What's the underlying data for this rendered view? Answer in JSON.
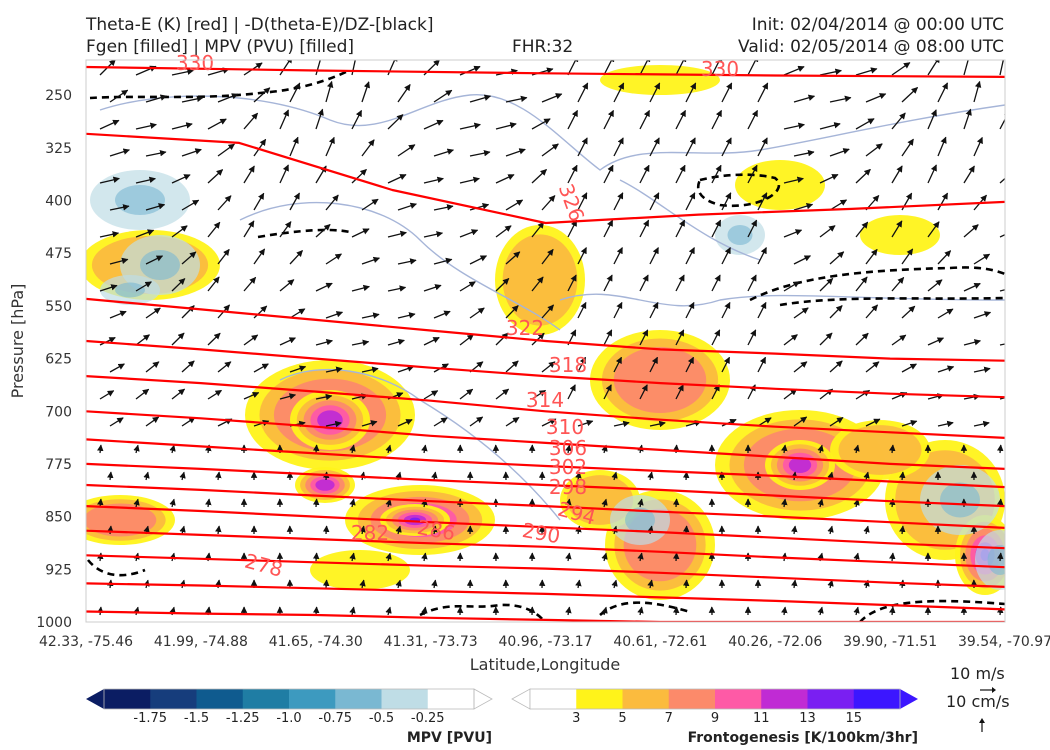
{
  "header": {
    "line1_left": "Theta-E (K) [red] | -D(theta-E)/DZ-[black]",
    "line2_left": "Fgen [filled] | MPV (PVU) [filled]",
    "line2_center": "FHR:32",
    "line1_right": "Init: 02/04/2014 @ 00:00 UTC",
    "line2_right": "Valid: 02/05/2014 @ 08:00 UTC"
  },
  "vector_legend": {
    "wind": "10 m/s",
    "vertical": "10 cm/s"
  },
  "colors": {
    "theta_e": "#ff0000",
    "theta_e_label": "#ff5555",
    "stability": "#000000",
    "mpv_outline": "#a6b5d8"
  },
  "chart_data": {
    "type": "cross-section",
    "xlabel": "Latitude,Longitude",
    "ylabel": "Pressure [hPa]",
    "y_scale": "pressure (inverted)",
    "ylim": [
      1000,
      200
    ],
    "x_ticks": [
      "42.33, -75.46",
      "41.99, -74.88",
      "41.65, -74.30",
      "41.31, -73.73",
      "40.96, -73.17",
      "40.61, -72.61",
      "40.26, -72.06",
      "39.90, -71.51",
      "39.54, -70.97"
    ],
    "y_ticks": [
      250,
      325,
      400,
      475,
      550,
      625,
      700,
      775,
      850,
      925,
      1000
    ],
    "theta_e_labels": [
      "330",
      "330",
      "326",
      "322",
      "318",
      "314",
      "310",
      "306",
      "302",
      "298",
      "294",
      "290",
      "286",
      "282",
      "278"
    ],
    "theta_e_contours": [
      {
        "level": 330,
        "y": [
          210,
          215,
          219,
          222,
          224
        ]
      },
      {
        "level": 326,
        "y": [
          305,
          318,
          385,
          432,
          420,
          412,
          402
        ]
      },
      {
        "level": 322,
        "y": [
          540,
          555,
          570,
          585,
          600,
          612,
          618,
          625,
          628
        ]
      },
      {
        "level": 318,
        "y": [
          600,
          612,
          625,
          638,
          650,
          660,
          668,
          675,
          680
        ]
      },
      {
        "level": 314,
        "y": [
          650,
          660,
          672,
          685,
          700,
          712,
          722,
          730,
          738
        ]
      },
      {
        "level": 310,
        "y": [
          700,
          710,
          722,
          735,
          745,
          755,
          765,
          775,
          782
        ]
      },
      {
        "level": 306,
        "y": [
          740,
          750,
          760,
          770,
          778,
          785,
          792,
          800,
          808
        ]
      },
      {
        "level": 302,
        "y": [
          775,
          782,
          790,
          798,
          805,
          812,
          820,
          828,
          835
        ]
      },
      {
        "level": 298,
        "y": [
          805,
          812,
          820,
          828,
          835,
          843,
          850,
          858,
          866
        ]
      },
      {
        "level": 294,
        "y": [
          835,
          842,
          850,
          858,
          865,
          872,
          880,
          888,
          895
        ]
      },
      {
        "level": 290,
        "y": [
          870,
          876,
          882,
          888,
          893,
          900,
          908,
          915,
          922
        ]
      },
      {
        "level": 286,
        "y": [
          905,
          910,
          915,
          920,
          924,
          930,
          937,
          944,
          950
        ]
      },
      {
        "level": 282,
        "y": [
          945,
          948,
          952,
          956,
          960,
          965,
          970,
          976,
          982
        ]
      },
      {
        "level": 278,
        "y": [
          985,
          988,
          990,
          994,
          997,
          1000,
          1000,
          1000,
          1000
        ]
      }
    ],
    "fgen_colorbar": {
      "label": "Frontogenesis [K/100km/3hr]",
      "ticks": [
        "3",
        "5",
        "7",
        "9",
        "11",
        "13",
        "15"
      ],
      "colors": [
        "#ffffff",
        "#fff31a",
        "#fbbb3e",
        "#fc8a6a",
        "#fe5aa6",
        "#c02bd4",
        "#7a1ff2",
        "#3c16ff"
      ]
    },
    "mpv_colorbar": {
      "label": "MPV [PVU]",
      "ticks": [
        "-1.75",
        "-1.5",
        "-1.25",
        "-1.0",
        "-0.75",
        "-0.5",
        "-0.25"
      ],
      "colors": [
        "#0b1d63",
        "#163d7c",
        "#0f5b8f",
        "#1f7da4",
        "#3d9abf",
        "#7ab8d2",
        "#bfdde6",
        "#ffffff"
      ]
    }
  }
}
